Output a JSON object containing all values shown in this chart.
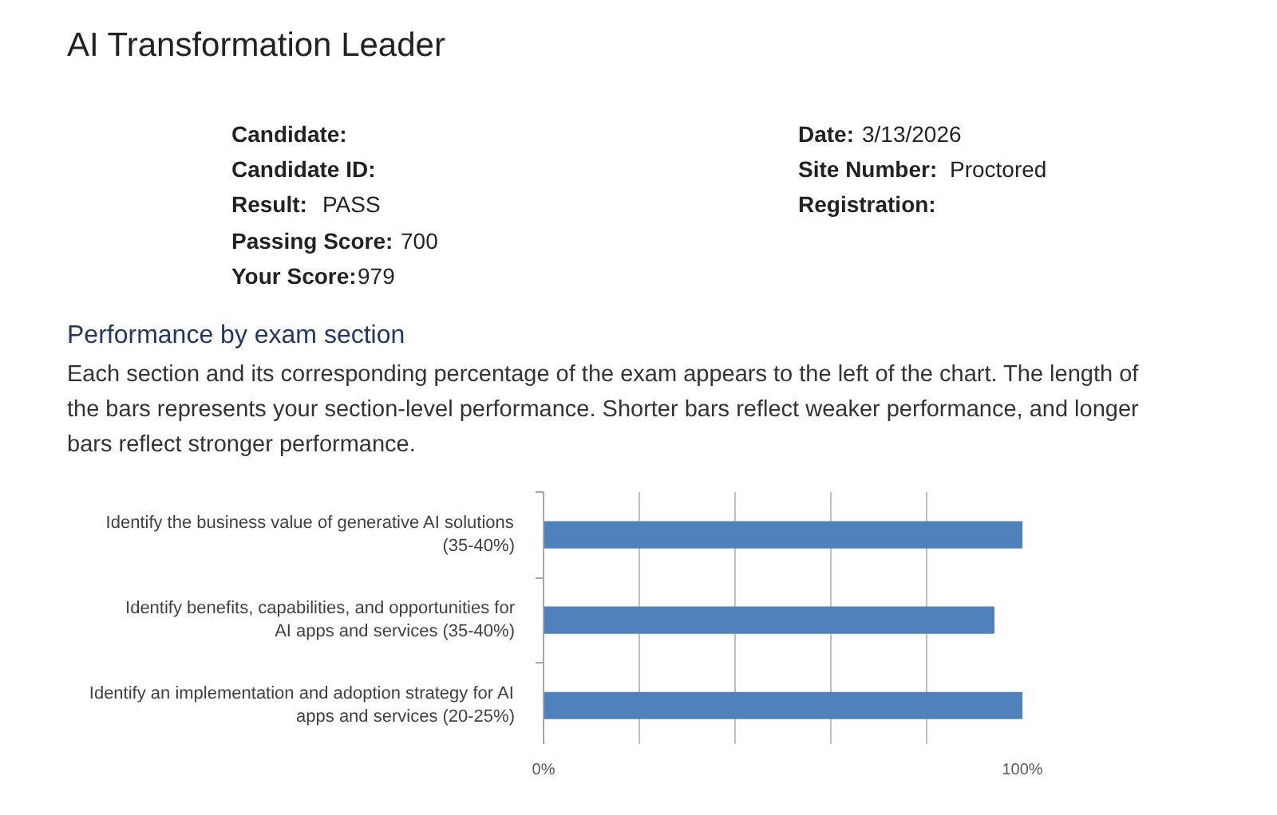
{
  "chart_data": {
    "type": "bar",
    "orientation": "horizontal",
    "title": "AI Transformation Leader",
    "categories": [
      "Identify the business value of generative AI solutions (35-40%)",
      "Identify benefits, capabilities, and opportunities for AI apps and services (35-40%)",
      "Identify an implementation and adoption strategy for AI apps and services (20-25%)"
    ],
    "values": [
      100,
      94,
      100
    ],
    "color": "#4f81bd",
    "xlim": [
      0,
      100
    ],
    "xticks": [
      {
        "value": 0,
        "label": "0%"
      },
      {
        "value": 20,
        "label": null
      },
      {
        "value": 40,
        "label": null
      },
      {
        "value": 60,
        "label": null
      },
      {
        "value": 80,
        "label": null
      },
      {
        "value": 100,
        "label": "100%"
      }
    ],
    "grid": "x",
    "annotations": [
      "Candidate:",
      "Candidate ID:",
      "Result:",
      "PASS",
      "Passing Score:",
      "700",
      "Your Score:",
      "979",
      "Date:",
      "3/13/2026",
      "Site Number:",
      "Proctored",
      "Registration:",
      "Performance by exam section",
      "Each section and its corresponding percentage of the exam appears to the left of the chart. The length of the bars represents your section-level performance. Shorter bars reflect weaker performance, and longer bars reflect stronger performance."
    ]
  }
}
